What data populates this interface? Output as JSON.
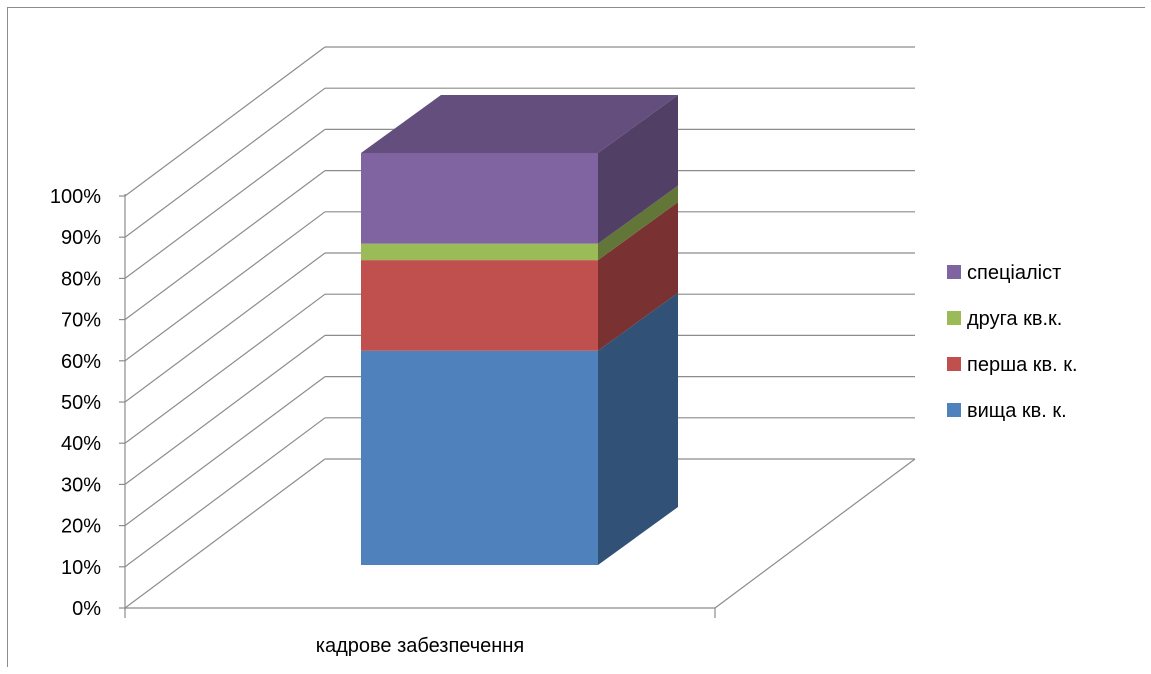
{
  "chart_data": {
    "type": "bar",
    "stacked": true,
    "percent_stacked": true,
    "three_d": true,
    "categories": [
      "кадрове забезпечення"
    ],
    "series": [
      {
        "name": "вища кв. к.",
        "values": [
          52
        ],
        "color": "#4F81BD"
      },
      {
        "name": "перша кв. к.",
        "values": [
          22
        ],
        "color": "#C0504D"
      },
      {
        "name": "друга кв.к.",
        "values": [
          4
        ],
        "color": "#9BBB59"
      },
      {
        "name": "спеціаліст",
        "values": [
          22
        ],
        "color": "#8064A2"
      }
    ],
    "yticks": [
      "0%",
      "10%",
      "20%",
      "30%",
      "40%",
      "50%",
      "60%",
      "70%",
      "80%",
      "90%",
      "100%"
    ],
    "ylim": [
      0,
      100
    ],
    "grid": true,
    "legend_position": "right"
  }
}
